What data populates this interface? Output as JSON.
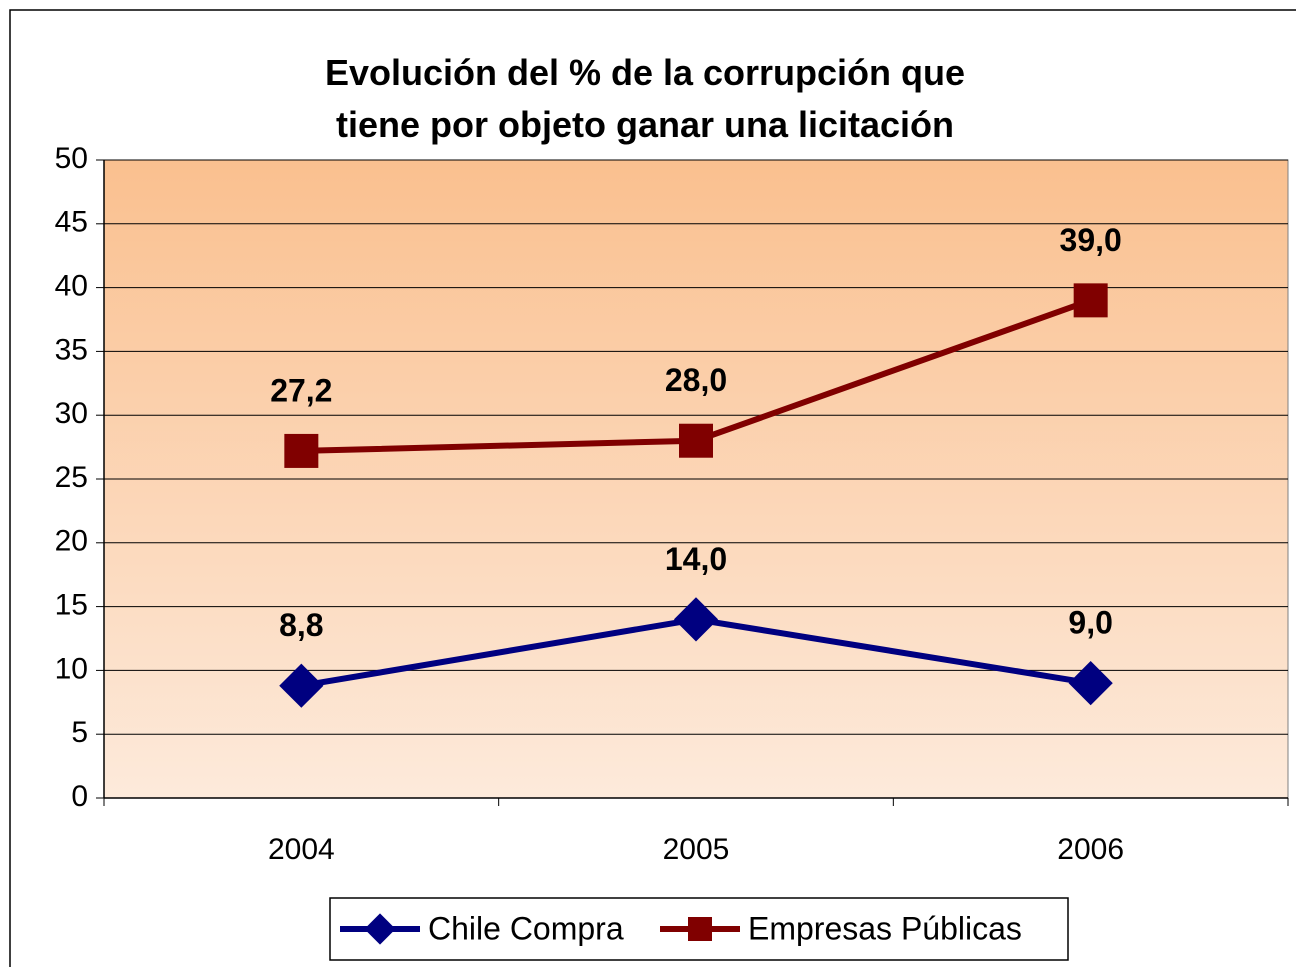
{
  "chart_data": {
    "type": "line",
    "title": "Evolución del % de la corrupción que tiene por objeto ganar una licitación",
    "categories": [
      "2004",
      "2005",
      "2006"
    ],
    "series": [
      {
        "name": "Chile Compra",
        "color": "#000080",
        "marker": "diamond",
        "values": [
          8.8,
          14.0,
          9.0
        ],
        "value_labels": [
          "8,8",
          "14,0",
          "9,0"
        ]
      },
      {
        "name": "Empresas Públicas",
        "color": "#800000",
        "marker": "square",
        "values": [
          27.2,
          28.0,
          39.0
        ],
        "value_labels": [
          "27,2",
          "28,0",
          "39,0"
        ]
      }
    ],
    "ylim": [
      0,
      50
    ],
    "yticks": [
      0,
      5,
      10,
      15,
      20,
      25,
      30,
      35,
      40,
      45,
      50
    ],
    "grid": true,
    "legend": "bottom"
  }
}
